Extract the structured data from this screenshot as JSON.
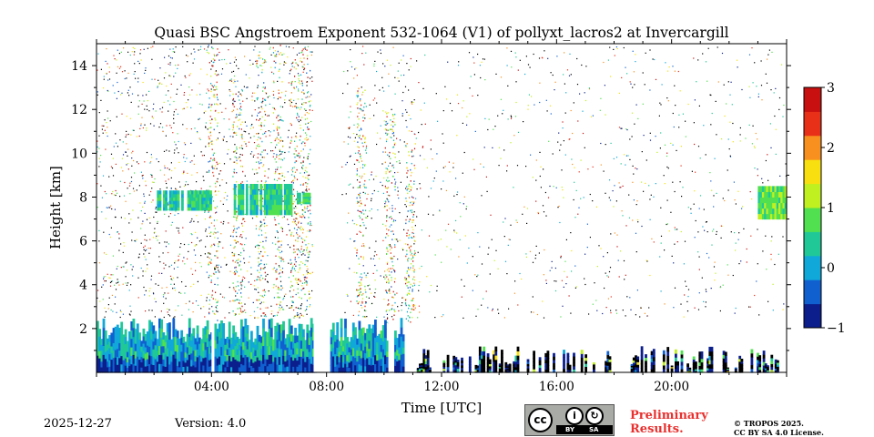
{
  "chart_data": {
    "type": "heatmap",
    "title": "Quasi BSC Angstroem Exponent 532-1064 (V1) of pollyxt_lacros2 at Invercargill",
    "xlabel": "Time [UTC]",
    "ylabel": "Height [km]",
    "xlim_hours": [
      0,
      24
    ],
    "ylim_km": [
      0,
      15
    ],
    "x_ticks": [
      {
        "hour": 4,
        "label": "04:00"
      },
      {
        "hour": 8,
        "label": "08:00"
      },
      {
        "hour": 12,
        "label": "12:00"
      },
      {
        "hour": 16,
        "label": "16:00"
      },
      {
        "hour": 20,
        "label": "20:00"
      }
    ],
    "y_ticks": [
      {
        "value": 2,
        "label": "2"
      },
      {
        "value": 4,
        "label": "4"
      },
      {
        "value": 6,
        "label": "6"
      },
      {
        "value": 8,
        "label": "8"
      },
      {
        "value": 10,
        "label": "10"
      },
      {
        "value": 12,
        "label": "12"
      },
      {
        "value": 14,
        "label": "14"
      }
    ],
    "colorbar": {
      "range": [
        -1,
        3
      ],
      "ticks": [
        {
          "value": 3,
          "label": "3"
        },
        {
          "value": 2,
          "label": "2"
        },
        {
          "value": 1,
          "label": "1"
        },
        {
          "value": 0,
          "label": "0"
        },
        {
          "value": -1,
          "label": "−1"
        }
      ],
      "colormap": [
        "#0b1e8c",
        "#1060d0",
        "#10a8d8",
        "#20c898",
        "#50e050",
        "#c0f020",
        "#f8e010",
        "#f89020",
        "#e83018",
        "#c81010"
      ]
    },
    "features": [
      {
        "name": "boundary layer",
        "start_hour": 0,
        "end_hour": 10.7,
        "base_km": 0,
        "top_km": 2.5,
        "typical_value": 0.3
      },
      {
        "name": "near-surface returns",
        "start_hour": 11,
        "end_hour": 24,
        "base_km": 0,
        "top_km": 1.2,
        "typical_value": -1
      },
      {
        "name": "aerosol layer",
        "start_hour": 2.1,
        "end_hour": 4.0,
        "base_km": 7.4,
        "top_km": 8.3,
        "typical_value": 0.4
      },
      {
        "name": "aerosol layer",
        "start_hour": 4.7,
        "end_hour": 6.8,
        "base_km": 7.2,
        "top_km": 8.6,
        "typical_value": 0.5
      },
      {
        "name": "aerosol layer",
        "start_hour": 6.9,
        "end_hour": 7.5,
        "base_km": 7.7,
        "top_km": 8.2,
        "typical_value": 0.6
      },
      {
        "name": "aerosol layer",
        "start_hour": 23.0,
        "end_hour": 24.0,
        "base_km": 7.0,
        "top_km": 8.5,
        "typical_value": 0.8
      }
    ]
  },
  "footer": {
    "date": "2025-12-27",
    "version": "Version: 4.0",
    "preliminary_line1": "Preliminary",
    "preliminary_line2": "Results.",
    "copyright_line1": "© TROPOS 2025.",
    "copyright_line2": "CC BY SA 4.0 License.",
    "license_badge": {
      "cc": "cc",
      "by": "BY",
      "sa": "SA"
    }
  }
}
